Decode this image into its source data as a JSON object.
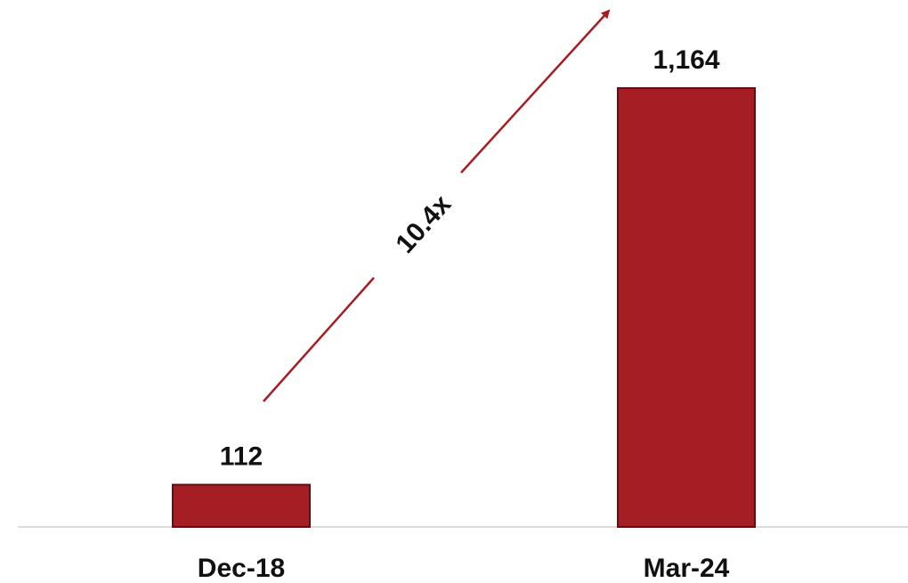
{
  "chart_data": {
    "type": "bar",
    "categories": [
      "Dec-18",
      "Mar-24"
    ],
    "values": [
      112,
      1164
    ],
    "data_labels": [
      "112",
      "1,164"
    ],
    "title": "",
    "xlabel": "",
    "ylabel": "",
    "ylim": [
      0,
      1164
    ],
    "grid": false,
    "legend": "none",
    "annotation": {
      "text": "10.4x",
      "from": "Dec-18",
      "to": "Mar-24",
      "shape": "arrow"
    },
    "colors": {
      "bar": "#A51E24",
      "bar_edge": "#5E0F12",
      "arrow": "#A51E24",
      "axis": "#D0D0D0"
    }
  }
}
